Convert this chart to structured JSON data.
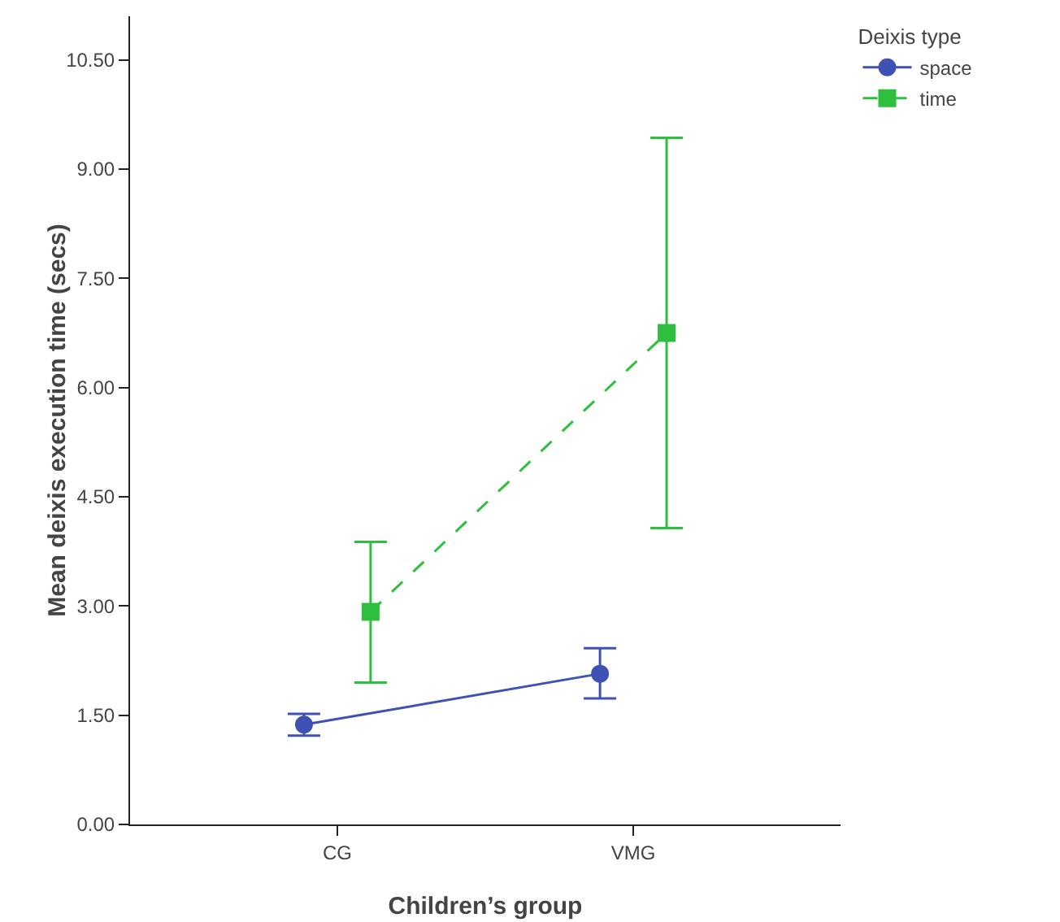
{
  "chart_data": {
    "type": "line",
    "xlabel": "Children’s group",
    "ylabel": "Mean deixis execution time (secs)",
    "legend_title": "Deixis type",
    "categories": [
      "CG",
      "VMG"
    ],
    "series": [
      {
        "name": "space",
        "color": "#3f51b5",
        "values": [
          1.37,
          2.07
        ],
        "errors": [
          [
            1.22,
            1.52
          ],
          [
            1.73,
            2.42
          ]
        ],
        "marker": "circle",
        "line_style": "solid"
      },
      {
        "name": "time",
        "color": "#2fbf3f",
        "values": [
          2.92,
          6.75
        ],
        "errors": [
          [
            1.95,
            3.88
          ],
          [
            4.07,
            9.43
          ]
        ],
        "marker": "square",
        "line_style": "dashed"
      }
    ],
    "ylim": [
      0,
      11.1
    ],
    "yticks": [
      {
        "value": 0,
        "label": "0.00"
      },
      {
        "value": 1.5,
        "label": "1.50"
      },
      {
        "value": 3,
        "label": "3.00"
      },
      {
        "value": 4.5,
        "label": "4.50"
      },
      {
        "value": 6,
        "label": "6.00"
      },
      {
        "value": 7.5,
        "label": "7.50"
      },
      {
        "value": 9,
        "label": "9.00"
      },
      {
        "value": 10.5,
        "label": "10.50"
      }
    ],
    "grid": false,
    "legend": "top right"
  }
}
